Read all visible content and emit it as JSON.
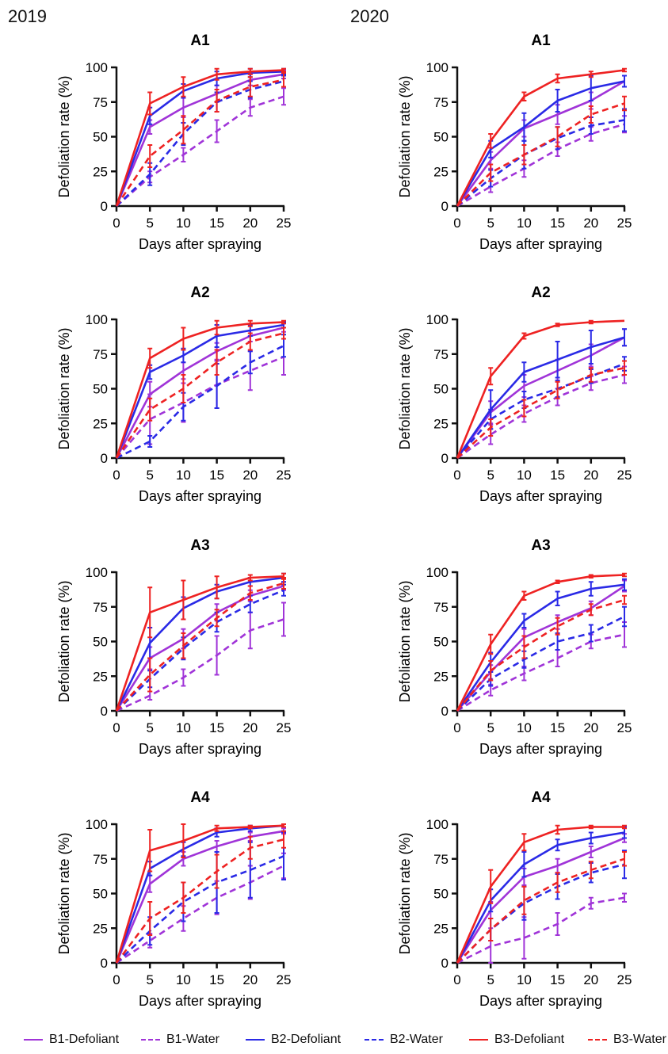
{
  "years": [
    "2019",
    "2020"
  ],
  "series_styles": [
    {
      "name": "B1-Defoliant",
      "color": "#a034d8",
      "dash": false
    },
    {
      "name": "B1-Water",
      "color": "#a034d8",
      "dash": true
    },
    {
      "name": "B2-Defoliant",
      "color": "#2a2ae6",
      "dash": false
    },
    {
      "name": "B2-Water",
      "color": "#2a2ae6",
      "dash": true
    },
    {
      "name": "B3-Defoliant",
      "color": "#ee2222",
      "dash": false
    },
    {
      "name": "B3-Water",
      "color": "#ee2222",
      "dash": true
    }
  ],
  "chart_data": [
    {
      "type": "line",
      "year": "2019",
      "title": "A1",
      "xlabel": "Days after spraying",
      "ylabel": "Defoliation rate (%)",
      "x": [
        0,
        5,
        10,
        15,
        20,
        25
      ],
      "xlim": [
        0,
        25
      ],
      "ylim": [
        0,
        100
      ],
      "xticks": [
        "0",
        "5",
        "10",
        "15",
        "20",
        "25"
      ],
      "yticks": [
        "0",
        "25",
        "50",
        "75",
        "100"
      ],
      "series": [
        {
          "name": "B1-Defoliant",
          "values": [
            0,
            57,
            71,
            81,
            91,
            95
          ],
          "errors": [
            0,
            5,
            7,
            6,
            4,
            3
          ]
        },
        {
          "name": "B1-Water",
          "values": [
            0,
            21,
            37,
            54,
            71,
            79
          ],
          "errors": [
            0,
            4,
            5,
            8,
            6,
            6
          ]
        },
        {
          "name": "B2-Defoliant",
          "values": [
            0,
            65,
            83,
            92,
            96,
            97
          ],
          "errors": [
            0,
            6,
            5,
            5,
            3,
            2
          ]
        },
        {
          "name": "B2-Water",
          "values": [
            0,
            23,
            52,
            75,
            84,
            90
          ],
          "errors": [
            0,
            8,
            8,
            7,
            6,
            4
          ]
        },
        {
          "name": "B3-Defoliant",
          "values": [
            0,
            74,
            86,
            95,
            97,
            98
          ],
          "errors": [
            0,
            8,
            7,
            4,
            2,
            1
          ]
        },
        {
          "name": "B3-Water",
          "values": [
            0,
            36,
            55,
            76,
            86,
            91
          ],
          "errors": [
            0,
            8,
            10,
            8,
            7,
            5
          ]
        }
      ]
    },
    {
      "type": "line",
      "year": "2020",
      "title": "A1",
      "xlabel": "Days after spraying",
      "ylabel": "Defoliation rate (%)",
      "x": [
        0,
        5,
        10,
        15,
        20,
        25
      ],
      "xlim": [
        0,
        25
      ],
      "ylim": [
        0,
        100
      ],
      "xticks": [
        "0",
        "5",
        "10",
        "15",
        "20",
        "25"
      ],
      "yticks": [
        "0",
        "25",
        "50",
        "75",
        "100"
      ],
      "series": [
        {
          "name": "B1-Defoliant",
          "values": [
            0,
            33,
            56,
            66,
            76,
            90
          ],
          "errors": [
            0,
            6,
            6,
            7,
            6,
            4
          ]
        },
        {
          "name": "B1-Water",
          "values": [
            0,
            14,
            27,
            41,
            52,
            59
          ],
          "errors": [
            0,
            4,
            6,
            5,
            5,
            6
          ]
        },
        {
          "name": "B2-Defoliant",
          "values": [
            0,
            41,
            57,
            76,
            85,
            90
          ],
          "errors": [
            0,
            6,
            10,
            8,
            9,
            4
          ]
        },
        {
          "name": "B2-Water",
          "values": [
            0,
            20,
            37,
            49,
            58,
            62
          ],
          "errors": [
            0,
            6,
            10,
            8,
            6,
            8
          ]
        },
        {
          "name": "B3-Defoliant",
          "values": [
            0,
            47,
            79,
            92,
            95,
            98
          ],
          "errors": [
            0,
            5,
            3,
            3,
            2,
            1
          ]
        },
        {
          "name": "B3-Water",
          "values": [
            0,
            24,
            37,
            50,
            66,
            74
          ],
          "errors": [
            0,
            6,
            7,
            7,
            6,
            5
          ]
        }
      ]
    },
    {
      "type": "line",
      "year": "2019",
      "title": "A2",
      "xlabel": "Days after spraying",
      "ylabel": "Defoliation rate (%)",
      "x": [
        0,
        5,
        10,
        15,
        20,
        25
      ],
      "xlim": [
        0,
        25
      ],
      "ylim": [
        0,
        100
      ],
      "xticks": [
        "0",
        "5",
        "10",
        "15",
        "20",
        "25"
      ],
      "yticks": [
        "0",
        "25",
        "50",
        "75",
        "100"
      ],
      "series": [
        {
          "name": "B1-Defoliant",
          "values": [
            0,
            46,
            63,
            77,
            88,
            94
          ],
          "errors": [
            0,
            9,
            6,
            6,
            4,
            3
          ]
        },
        {
          "name": "B1-Water",
          "values": [
            0,
            28,
            40,
            53,
            63,
            73
          ],
          "errors": [
            0,
            18,
            14,
            17,
            14,
            13
          ]
        },
        {
          "name": "B2-Defoliant",
          "values": [
            0,
            62,
            74,
            88,
            92,
            96
          ],
          "errors": [
            0,
            5,
            5,
            8,
            4,
            2
          ]
        },
        {
          "name": "B2-Water",
          "values": [
            0,
            12,
            37,
            52,
            69,
            81
          ],
          "errors": [
            0,
            4,
            10,
            16,
            8,
            8
          ]
        },
        {
          "name": "B3-Defoliant",
          "values": [
            0,
            72,
            86,
            94,
            97,
            98
          ],
          "errors": [
            0,
            7,
            8,
            5,
            2,
            1
          ]
        },
        {
          "name": "B3-Water",
          "values": [
            0,
            35,
            50,
            69,
            84,
            90
          ],
          "errors": [
            0,
            8,
            10,
            9,
            6,
            4
          ]
        }
      ]
    },
    {
      "type": "line",
      "year": "2020",
      "title": "A2",
      "xlabel": "Days after spraying",
      "ylabel": "Defoliation rate (%)",
      "x": [
        0,
        5,
        10,
        15,
        20,
        25
      ],
      "xlim": [
        0,
        25
      ],
      "ylim": [
        0,
        100
      ],
      "xticks": [
        "0",
        "5",
        "10",
        "15",
        "20",
        "25"
      ],
      "yticks": [
        "0",
        "25",
        "50",
        "75",
        "100"
      ],
      "series": [
        {
          "name": "B1-Defoliant",
          "values": [
            0,
            33,
            52,
            63,
            74,
            87
          ],
          "errors": [
            0,
            8,
            8,
            8,
            8,
            6
          ]
        },
        {
          "name": "B1-Water",
          "values": [
            0,
            17,
            32,
            44,
            54,
            60
          ],
          "errors": [
            0,
            7,
            6,
            6,
            5,
            6
          ]
        },
        {
          "name": "B2-Defoliant",
          "values": [
            0,
            35,
            62,
            71,
            80,
            87
          ],
          "errors": [
            0,
            14,
            7,
            13,
            12,
            6
          ]
        },
        {
          "name": "B2-Water",
          "values": [
            0,
            28,
            42,
            50,
            59,
            68
          ],
          "errors": [
            0,
            7,
            6,
            6,
            5,
            5
          ]
        },
        {
          "name": "B3-Defoliant",
          "values": [
            0,
            59,
            88,
            96,
            98,
            99
          ],
          "errors": [
            0,
            6,
            2,
            1,
            1,
            0
          ]
        },
        {
          "name": "B3-Water",
          "values": [
            0,
            22,
            36,
            49,
            60,
            65
          ],
          "errors": [
            0,
            6,
            6,
            6,
            5,
            5
          ]
        }
      ]
    },
    {
      "type": "line",
      "year": "2019",
      "title": "A3",
      "xlabel": "Days after spraying",
      "ylabel": "Defoliation rate (%)",
      "x": [
        0,
        5,
        10,
        15,
        20,
        25
      ],
      "xlim": [
        0,
        25
      ],
      "ylim": [
        0,
        100
      ],
      "xticks": [
        "0",
        "5",
        "10",
        "15",
        "20",
        "25"
      ],
      "yticks": [
        "0",
        "25",
        "50",
        "75",
        "100"
      ],
      "series": [
        {
          "name": "B1-Defoliant",
          "values": [
            0,
            38,
            52,
            71,
            83,
            90
          ],
          "errors": [
            0,
            8,
            7,
            6,
            4,
            3
          ]
        },
        {
          "name": "B1-Water",
          "values": [
            0,
            11,
            24,
            40,
            58,
            66
          ],
          "errors": [
            0,
            3,
            6,
            14,
            13,
            12
          ]
        },
        {
          "name": "B2-Defoliant",
          "values": [
            0,
            49,
            74,
            86,
            93,
            96
          ],
          "errors": [
            0,
            11,
            8,
            5,
            3,
            3
          ]
        },
        {
          "name": "B2-Water",
          "values": [
            0,
            23,
            45,
            64,
            77,
            87
          ],
          "errors": [
            0,
            6,
            8,
            7,
            6,
            4
          ]
        },
        {
          "name": "B3-Defoliant",
          "values": [
            0,
            71,
            80,
            89,
            96,
            97
          ],
          "errors": [
            0,
            18,
            14,
            8,
            2,
            2
          ]
        },
        {
          "name": "B3-Water",
          "values": [
            0,
            26,
            47,
            67,
            85,
            92
          ],
          "errors": [
            0,
            12,
            9,
            6,
            5,
            4
          ]
        }
      ]
    },
    {
      "type": "line",
      "year": "2020",
      "title": "A3",
      "xlabel": "Days after spraying",
      "ylabel": "Defoliation rate (%)",
      "x": [
        0,
        5,
        10,
        15,
        20,
        25
      ],
      "xlim": [
        0,
        25
      ],
      "ylim": [
        0,
        100
      ],
      "xticks": [
        "0",
        "5",
        "10",
        "15",
        "20",
        "25"
      ],
      "yticks": [
        "0",
        "25",
        "50",
        "75",
        "100"
      ],
      "series": [
        {
          "name": "B1-Defoliant",
          "values": [
            0,
            28,
            53,
            64,
            74,
            90
          ],
          "errors": [
            0,
            5,
            6,
            5,
            5,
            4
          ]
        },
        {
          "name": "B1-Water",
          "values": [
            0,
            15,
            27,
            38,
            50,
            55
          ],
          "errors": [
            0,
            4,
            5,
            6,
            5,
            9
          ]
        },
        {
          "name": "B2-Defoliant",
          "values": [
            0,
            35,
            65,
            81,
            88,
            91
          ],
          "errors": [
            0,
            7,
            5,
            5,
            5,
            4
          ]
        },
        {
          "name": "B2-Water",
          "values": [
            0,
            23,
            37,
            50,
            56,
            68
          ],
          "errors": [
            0,
            5,
            6,
            6,
            6,
            7
          ]
        },
        {
          "name": "B3-Defoliant",
          "values": [
            0,
            48,
            83,
            93,
            97,
            98
          ],
          "errors": [
            0,
            7,
            3,
            1,
            1,
            1
          ]
        },
        {
          "name": "B3-Water",
          "values": [
            0,
            29,
            46,
            61,
            73,
            80
          ],
          "errors": [
            0,
            7,
            8,
            6,
            4,
            3
          ]
        }
      ]
    },
    {
      "type": "line",
      "year": "2019",
      "title": "A4",
      "xlabel": "Days after spraying",
      "ylabel": "Defoliation rate (%)",
      "x": [
        0,
        5,
        10,
        15,
        20,
        25
      ],
      "xlim": [
        0,
        25
      ],
      "ylim": [
        0,
        100
      ],
      "xticks": [
        "0",
        "5",
        "10",
        "15",
        "20",
        "25"
      ],
      "yticks": [
        "0",
        "25",
        "50",
        "75",
        "100"
      ],
      "series": [
        {
          "name": "B1-Defoliant",
          "values": [
            0,
            57,
            75,
            84,
            91,
            95
          ],
          "errors": [
            0,
            6,
            5,
            4,
            3,
            2
          ]
        },
        {
          "name": "B1-Water",
          "values": [
            0,
            16,
            32,
            47,
            58,
            70
          ],
          "errors": [
            0,
            5,
            9,
            12,
            12,
            9
          ]
        },
        {
          "name": "B2-Defoliant",
          "values": [
            0,
            68,
            82,
            94,
            97,
            99
          ],
          "errors": [
            0,
            5,
            5,
            3,
            2,
            1
          ]
        },
        {
          "name": "B2-Water",
          "values": [
            0,
            23,
            44,
            58,
            67,
            77
          ],
          "errors": [
            0,
            10,
            14,
            22,
            20,
            17
          ]
        },
        {
          "name": "B3-Defoliant",
          "values": [
            0,
            81,
            88,
            97,
            98,
            99
          ],
          "errors": [
            0,
            15,
            12,
            2,
            1,
            1
          ]
        },
        {
          "name": "B3-Water",
          "values": [
            0,
            32,
            47,
            66,
            83,
            89
          ],
          "errors": [
            0,
            12,
            11,
            12,
            8,
            6
          ]
        }
      ]
    },
    {
      "type": "line",
      "year": "2020",
      "title": "A4",
      "xlabel": "Days after spraying",
      "ylabel": "Defoliation rate (%)",
      "x": [
        0,
        5,
        10,
        15,
        20,
        25
      ],
      "xlim": [
        0,
        25
      ],
      "ylim": [
        0,
        100
      ],
      "xticks": [
        "0",
        "5",
        "10",
        "15",
        "20",
        "25"
      ],
      "yticks": [
        "0",
        "25",
        "50",
        "75",
        "100"
      ],
      "series": [
        {
          "name": "B1-Defoliant",
          "values": [
            0,
            38,
            62,
            70,
            80,
            90
          ],
          "errors": [
            0,
            6,
            6,
            5,
            4,
            3
          ]
        },
        {
          "name": "B1-Water",
          "values": [
            0,
            12,
            18,
            28,
            43,
            47
          ],
          "errors": [
            0,
            13,
            15,
            8,
            4,
            3
          ]
        },
        {
          "name": "B2-Defoliant",
          "values": [
            0,
            45,
            71,
            85,
            90,
            94
          ],
          "errors": [
            0,
            8,
            9,
            4,
            4,
            4
          ]
        },
        {
          "name": "B2-Water",
          "values": [
            0,
            24,
            43,
            55,
            65,
            71
          ],
          "errors": [
            0,
            8,
            12,
            9,
            7,
            10
          ]
        },
        {
          "name": "B3-Defoliant",
          "values": [
            0,
            55,
            87,
            96,
            98,
            98
          ],
          "errors": [
            0,
            12,
            6,
            3,
            1,
            1
          ]
        },
        {
          "name": "B3-Water",
          "values": [
            0,
            24,
            45,
            58,
            67,
            75
          ],
          "errors": [
            0,
            8,
            10,
            7,
            6,
            5
          ]
        }
      ]
    }
  ]
}
